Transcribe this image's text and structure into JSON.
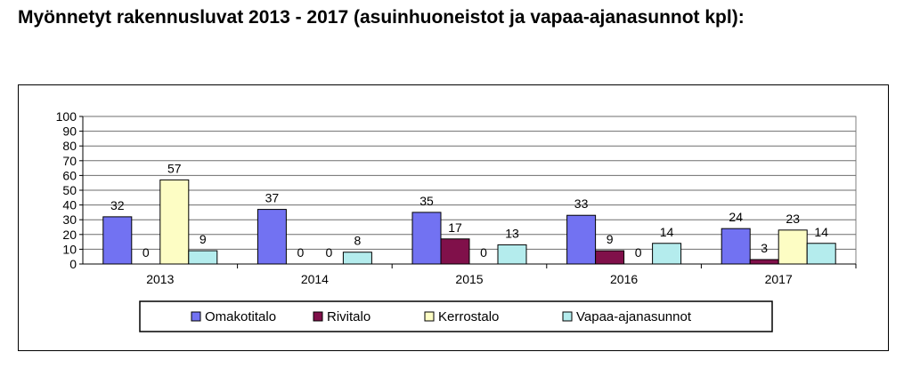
{
  "page": {
    "title": "Myönnetyt rakennusluvat 2013 - 2017 (asuinhuoneistot ja vapaa-ajanasunnot kpl):"
  },
  "chart_data": {
    "type": "bar",
    "title": "",
    "xlabel": "",
    "ylabel": "",
    "categories": [
      "2013",
      "2014",
      "2015",
      "2016",
      "2017"
    ],
    "ylim": [
      0,
      100
    ],
    "yticks": [
      0,
      10,
      20,
      30,
      40,
      50,
      60,
      70,
      80,
      90,
      100
    ],
    "grid": true,
    "data_labels": true,
    "legend_position": "bottom",
    "series": [
      {
        "name": "Omakotitalo",
        "color": "#7272f2",
        "values": [
          32,
          37,
          35,
          33,
          24
        ]
      },
      {
        "name": "Rivitalo",
        "color": "#80104a",
        "values": [
          0,
          0,
          17,
          9,
          3
        ]
      },
      {
        "name": "Kerrostalo",
        "color": "#fdfdc4",
        "values": [
          57,
          0,
          0,
          0,
          23
        ]
      },
      {
        "name": "Vapaa-ajanasunnot",
        "color": "#b4eced",
        "values": [
          9,
          8,
          13,
          14,
          14
        ]
      }
    ]
  }
}
